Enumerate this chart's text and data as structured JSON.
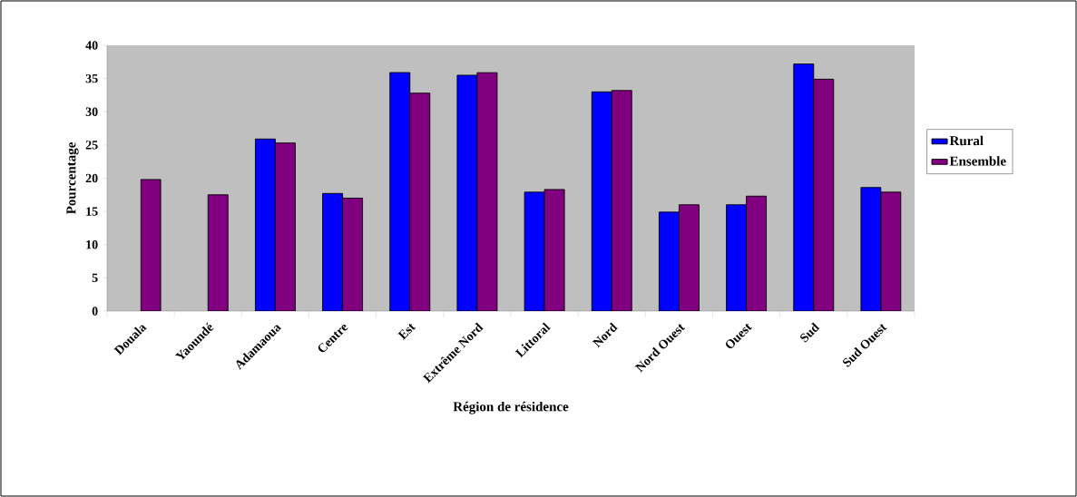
{
  "chart_data": {
    "type": "bar",
    "xlabel": "Région de résidence",
    "ylabel": "Pourcentage",
    "categories": [
      "Douala",
      "Yaoundé",
      "Adamaoua",
      "Centre",
      "Est",
      "Extrême Nord",
      "Littoral",
      "Nord",
      "Nord Ouest",
      "Ouest",
      "Sud",
      "Sud Ouest"
    ],
    "series": [
      {
        "name": "Rural",
        "color": "#0000ff",
        "values": [
          null,
          null,
          25.9,
          17.7,
          35.9,
          35.5,
          17.9,
          33.0,
          14.9,
          16.0,
          37.2,
          18.6
        ]
      },
      {
        "name": "Ensemble",
        "color": "#800080",
        "values": [
          19.8,
          17.5,
          25.3,
          17.0,
          32.8,
          35.9,
          18.3,
          33.2,
          16.0,
          17.3,
          34.9,
          17.9
        ]
      }
    ],
    "ylim": [
      0,
      40
    ],
    "yticks": [
      0,
      5,
      10,
      15,
      20,
      25,
      30,
      35,
      40
    ],
    "legend": "right"
  }
}
